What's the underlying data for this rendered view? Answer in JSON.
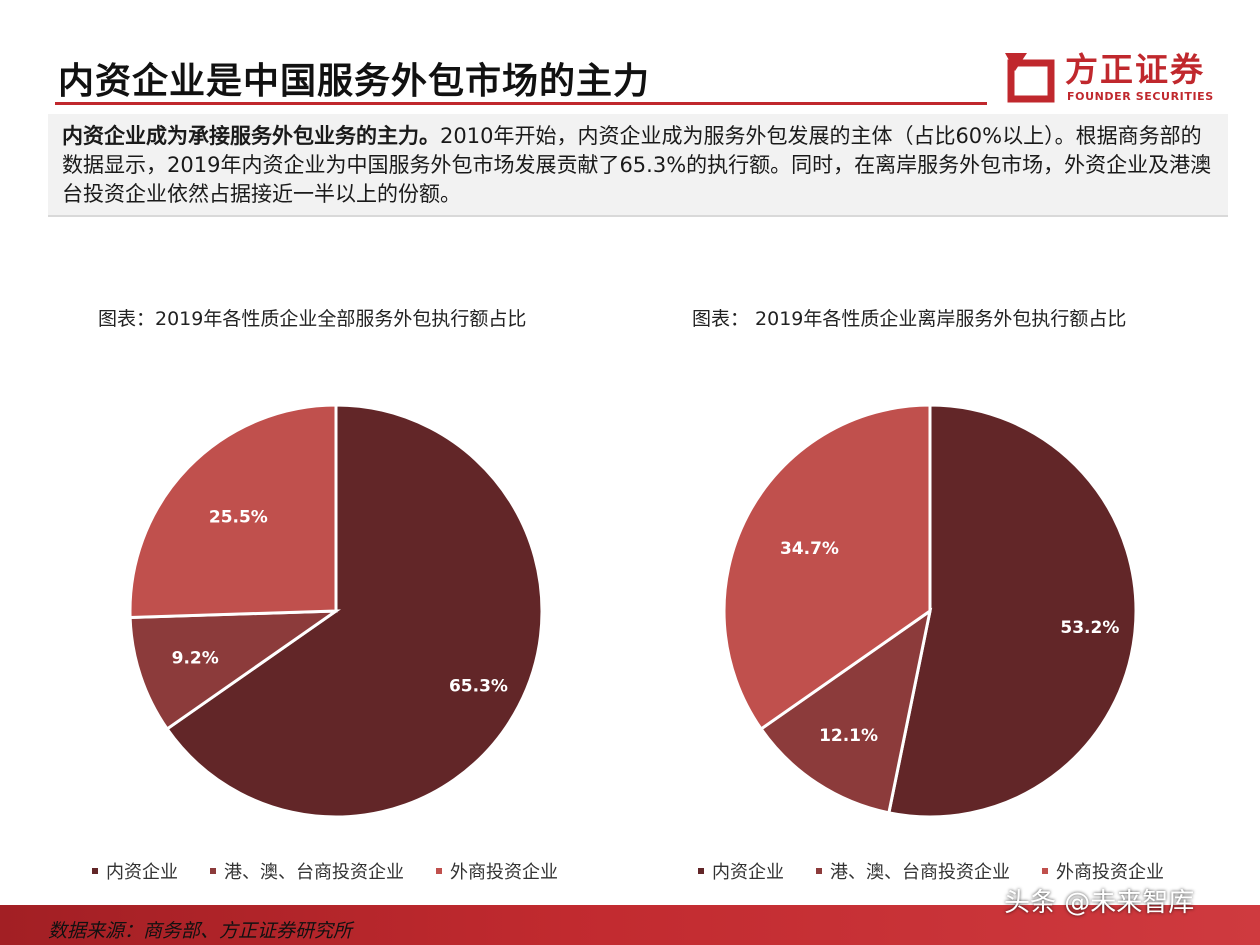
{
  "header": {
    "title": "内资企业是中国服务外包市场的主力",
    "logo_cn": "方正证券",
    "logo_en": "FOUNDER SECURITIES"
  },
  "summary": {
    "lead": "内资企业成为承接服务外包业务的主力。",
    "body": "2010年开始，内资企业成为服务外包发展的主体（占比60%以上）。根据商务部的数据显示，2019年内资企业为中国服务外包市场发展贡献了65.3%的执行额。同时，在离岸服务外包市场，外资企业及港澳台投资企业依然占据接近一半以上的份额。"
  },
  "colors": {
    "accent": "#c0282d",
    "domestic": "#622628",
    "hk_macao_taiwan": "#8c3b3b",
    "foreign": "#c0504d"
  },
  "chart_data": [
    {
      "type": "pie",
      "title": "图表：2019年各性质企业全部服务外包执行额占比",
      "categories": [
        "内资企业",
        "港、澳、台商投资企业",
        "外商投资企业"
      ],
      "values": [
        65.3,
        9.2,
        25.5
      ],
      "labels": [
        "65.3%",
        "9.2%",
        "25.5%"
      ],
      "legend": "bottom"
    },
    {
      "type": "pie",
      "title": "图表： 2019年各性质企业离岸服务外包执行额占比",
      "categories": [
        "内资企业",
        "港、澳、台商投资企业",
        "外商投资企业"
      ],
      "values": [
        53.2,
        12.1,
        34.7
      ],
      "labels": [
        "53.2%",
        "12.1%",
        "34.7%"
      ],
      "legend": "bottom"
    }
  ],
  "footer": {
    "source": "数据来源：商务部、方正证券研究所",
    "watermark": "头条 @未来智库"
  }
}
